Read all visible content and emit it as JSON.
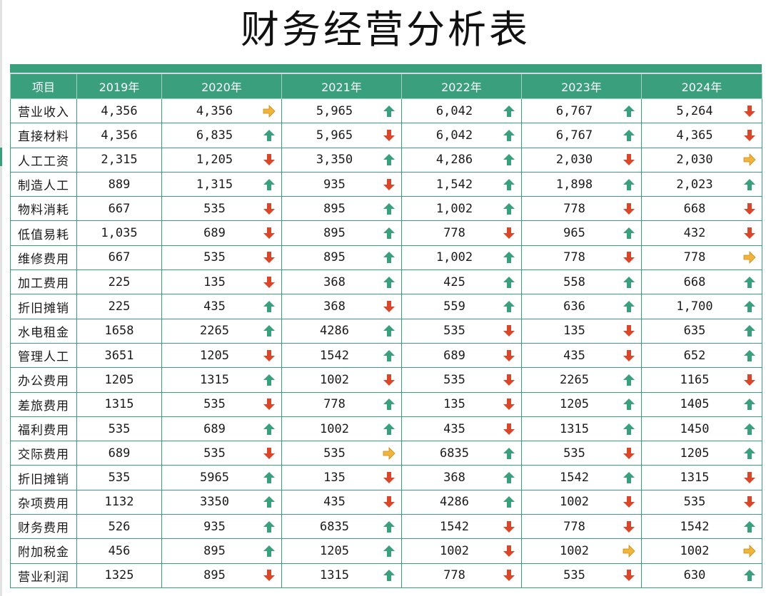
{
  "title": "财务经营分析表",
  "colors": {
    "header": "#3a9f7c",
    "up": "#3a9f7c",
    "down": "#d9472a",
    "flat": "#f0b43c"
  },
  "headers": [
    "项目",
    "2019年",
    "2020年",
    "2021年",
    "2022年",
    "2023年",
    "2024年"
  ],
  "rows": [
    {
      "item": "营业收入",
      "y2019": "4,356",
      "y2020": {
        "v": "4,356",
        "t": "flat"
      },
      "y2021": {
        "v": "5,965",
        "t": "up"
      },
      "y2022": {
        "v": "6,042",
        "t": "up"
      },
      "y2023": {
        "v": "6,767",
        "t": "up"
      },
      "y2024": {
        "v": "5,264",
        "t": "down"
      }
    },
    {
      "item": "直接材料",
      "y2019": "4,356",
      "y2020": {
        "v": "6,835",
        "t": "up"
      },
      "y2021": {
        "v": "5,965",
        "t": "down"
      },
      "y2022": {
        "v": "6,042",
        "t": "up"
      },
      "y2023": {
        "v": "6,767",
        "t": "up"
      },
      "y2024": {
        "v": "4,365",
        "t": "down"
      }
    },
    {
      "item": "人工工资",
      "y2019": "2,315",
      "y2020": {
        "v": "1,205",
        "t": "down"
      },
      "y2021": {
        "v": "3,350",
        "t": "up"
      },
      "y2022": {
        "v": "4,286",
        "t": "up"
      },
      "y2023": {
        "v": "2,030",
        "t": "down"
      },
      "y2024": {
        "v": "2,030",
        "t": "flat"
      }
    },
    {
      "item": "制造人工",
      "y2019": "889",
      "y2020": {
        "v": "1,315",
        "t": "up"
      },
      "y2021": {
        "v": "935",
        "t": "down"
      },
      "y2022": {
        "v": "1,542",
        "t": "up"
      },
      "y2023": {
        "v": "1,898",
        "t": "up"
      },
      "y2024": {
        "v": "2,023",
        "t": "up"
      }
    },
    {
      "item": "物料消耗",
      "y2019": "667",
      "y2020": {
        "v": "535",
        "t": "down"
      },
      "y2021": {
        "v": "895",
        "t": "up"
      },
      "y2022": {
        "v": "1,002",
        "t": "up"
      },
      "y2023": {
        "v": "778",
        "t": "down"
      },
      "y2024": {
        "v": "668",
        "t": "down"
      }
    },
    {
      "item": "低值易耗",
      "y2019": "1,035",
      "y2020": {
        "v": "689",
        "t": "down"
      },
      "y2021": {
        "v": "895",
        "t": "up"
      },
      "y2022": {
        "v": "778",
        "t": "down"
      },
      "y2023": {
        "v": "965",
        "t": "up"
      },
      "y2024": {
        "v": "432",
        "t": "down"
      }
    },
    {
      "item": "维修费用",
      "y2019": "667",
      "y2020": {
        "v": "535",
        "t": "down"
      },
      "y2021": {
        "v": "895",
        "t": "up"
      },
      "y2022": {
        "v": "1,002",
        "t": "up"
      },
      "y2023": {
        "v": "778",
        "t": "down"
      },
      "y2024": {
        "v": "778",
        "t": "flat"
      }
    },
    {
      "item": "加工费用",
      "y2019": "225",
      "y2020": {
        "v": "135",
        "t": "down"
      },
      "y2021": {
        "v": "368",
        "t": "up"
      },
      "y2022": {
        "v": "425",
        "t": "up"
      },
      "y2023": {
        "v": "558",
        "t": "up"
      },
      "y2024": {
        "v": "668",
        "t": "up"
      }
    },
    {
      "item": "折旧摊销",
      "y2019": "225",
      "y2020": {
        "v": "435",
        "t": "up"
      },
      "y2021": {
        "v": "368",
        "t": "down"
      },
      "y2022": {
        "v": "559",
        "t": "up"
      },
      "y2023": {
        "v": "636",
        "t": "up"
      },
      "y2024": {
        "v": "1,700",
        "t": "up"
      }
    },
    {
      "item": "水电租金",
      "y2019": "1658",
      "y2020": {
        "v": "2265",
        "t": "up"
      },
      "y2021": {
        "v": "4286",
        "t": "up"
      },
      "y2022": {
        "v": "535",
        "t": "down"
      },
      "y2023": {
        "v": "135",
        "t": "down"
      },
      "y2024": {
        "v": "635",
        "t": "up"
      }
    },
    {
      "item": "管理人工",
      "y2019": "3651",
      "y2020": {
        "v": "1205",
        "t": "down"
      },
      "y2021": {
        "v": "1542",
        "t": "up"
      },
      "y2022": {
        "v": "689",
        "t": "down"
      },
      "y2023": {
        "v": "435",
        "t": "down"
      },
      "y2024": {
        "v": "652",
        "t": "up"
      }
    },
    {
      "item": "办公费用",
      "y2019": "1205",
      "y2020": {
        "v": "1315",
        "t": "up"
      },
      "y2021": {
        "v": "1002",
        "t": "down"
      },
      "y2022": {
        "v": "535",
        "t": "down"
      },
      "y2023": {
        "v": "2265",
        "t": "up"
      },
      "y2024": {
        "v": "1165",
        "t": "down"
      }
    },
    {
      "item": "差旅费用",
      "y2019": "1315",
      "y2020": {
        "v": "535",
        "t": "down"
      },
      "y2021": {
        "v": "778",
        "t": "up"
      },
      "y2022": {
        "v": "135",
        "t": "down"
      },
      "y2023": {
        "v": "1205",
        "t": "up"
      },
      "y2024": {
        "v": "1405",
        "t": "up"
      }
    },
    {
      "item": "福利费用",
      "y2019": "535",
      "y2020": {
        "v": "689",
        "t": "up"
      },
      "y2021": {
        "v": "1002",
        "t": "up"
      },
      "y2022": {
        "v": "435",
        "t": "down"
      },
      "y2023": {
        "v": "1315",
        "t": "up"
      },
      "y2024": {
        "v": "1450",
        "t": "up"
      }
    },
    {
      "item": "交际费用",
      "y2019": "689",
      "y2020": {
        "v": "535",
        "t": "down"
      },
      "y2021": {
        "v": "535",
        "t": "flat"
      },
      "y2022": {
        "v": "6835",
        "t": "up"
      },
      "y2023": {
        "v": "535",
        "t": "down"
      },
      "y2024": {
        "v": "1205",
        "t": "up"
      }
    },
    {
      "item": "折旧摊销",
      "y2019": "535",
      "y2020": {
        "v": "5965",
        "t": "up"
      },
      "y2021": {
        "v": "135",
        "t": "down"
      },
      "y2022": {
        "v": "368",
        "t": "up"
      },
      "y2023": {
        "v": "1542",
        "t": "up"
      },
      "y2024": {
        "v": "1315",
        "t": "down"
      }
    },
    {
      "item": "杂项费用",
      "y2019": "1132",
      "y2020": {
        "v": "3350",
        "t": "up"
      },
      "y2021": {
        "v": "435",
        "t": "down"
      },
      "y2022": {
        "v": "4286",
        "t": "up"
      },
      "y2023": {
        "v": "1002",
        "t": "down"
      },
      "y2024": {
        "v": "535",
        "t": "down"
      }
    },
    {
      "item": "财务费用",
      "y2019": "526",
      "y2020": {
        "v": "935",
        "t": "up"
      },
      "y2021": {
        "v": "6835",
        "t": "up"
      },
      "y2022": {
        "v": "1542",
        "t": "down"
      },
      "y2023": {
        "v": "778",
        "t": "down"
      },
      "y2024": {
        "v": "1542",
        "t": "up"
      }
    },
    {
      "item": "附加税金",
      "y2019": "456",
      "y2020": {
        "v": "895",
        "t": "up"
      },
      "y2021": {
        "v": "1205",
        "t": "up"
      },
      "y2022": {
        "v": "1002",
        "t": "down"
      },
      "y2023": {
        "v": "1002",
        "t": "flat"
      },
      "y2024": {
        "v": "1002",
        "t": "flat"
      }
    },
    {
      "item": "营业利润",
      "y2019": "1325",
      "y2020": {
        "v": "895",
        "t": "down"
      },
      "y2021": {
        "v": "1315",
        "t": "up"
      },
      "y2022": {
        "v": "778",
        "t": "down"
      },
      "y2023": {
        "v": "535",
        "t": "down"
      },
      "y2024": {
        "v": "630",
        "t": "up"
      }
    }
  ]
}
